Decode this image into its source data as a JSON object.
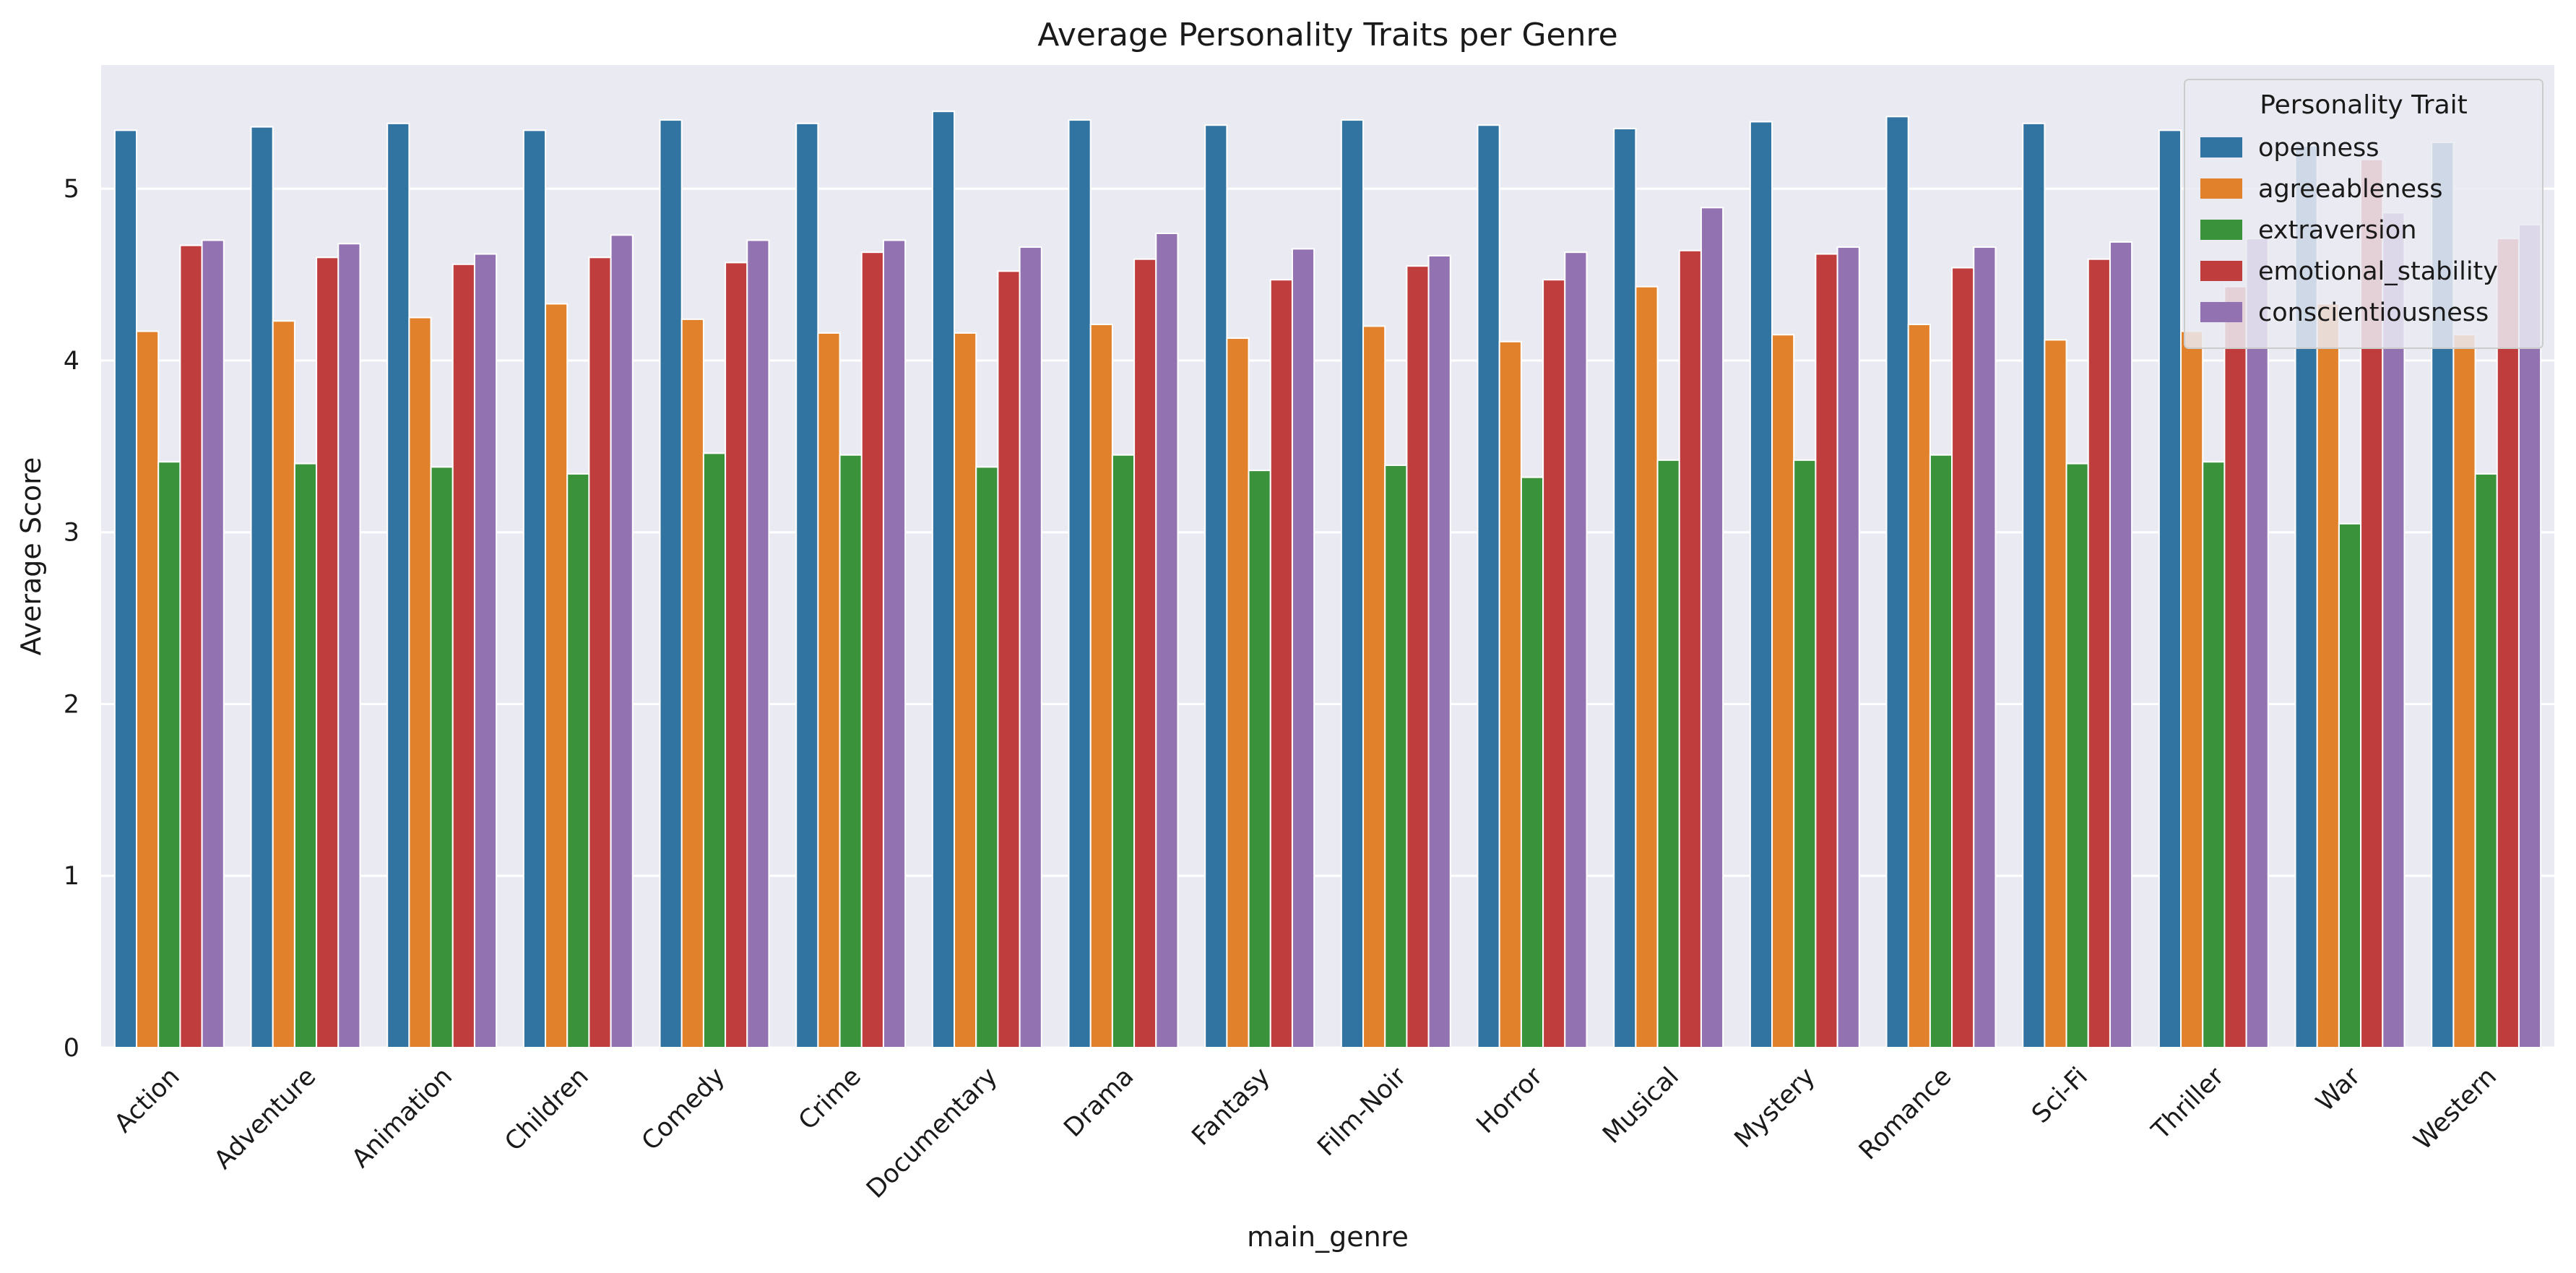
{
  "chart_data": {
    "type": "bar",
    "title": "Average Personality Traits per Genre",
    "xlabel": "main_genre",
    "ylabel": "Average Score",
    "ylim": [
      0,
      5.72
    ],
    "yticks": [
      "0",
      "1",
      "2",
      "3",
      "4",
      "5"
    ],
    "grid": true,
    "legend": {
      "title": "Personality Trait",
      "placement": "top-right"
    },
    "categories": [
      "Action",
      "Adventure",
      "Animation",
      "Children",
      "Comedy",
      "Crime",
      "Documentary",
      "Drama",
      "Fantasy",
      "Film-Noir",
      "Horror",
      "Musical",
      "Mystery",
      "Romance",
      "Sci-Fi",
      "Thriller",
      "War",
      "Western"
    ],
    "series": [
      {
        "name": "openness",
        "color": "#3274a1",
        "values": [
          5.34,
          5.36,
          5.38,
          5.34,
          5.4,
          5.38,
          5.45,
          5.4,
          5.37,
          5.4,
          5.37,
          5.35,
          5.39,
          5.42,
          5.38,
          5.34,
          5.25,
          5.27
        ]
      },
      {
        "name": "agreeableness",
        "color": "#e1812c",
        "values": [
          4.17,
          4.23,
          4.25,
          4.33,
          4.24,
          4.16,
          4.16,
          4.21,
          4.13,
          4.2,
          4.11,
          4.43,
          4.15,
          4.21,
          4.12,
          4.17,
          4.33,
          4.15
        ]
      },
      {
        "name": "extraversion",
        "color": "#3a923a",
        "values": [
          3.41,
          3.4,
          3.38,
          3.34,
          3.46,
          3.45,
          3.38,
          3.45,
          3.36,
          3.39,
          3.32,
          3.42,
          3.42,
          3.45,
          3.4,
          3.41,
          3.05,
          3.34
        ]
      },
      {
        "name": "emotional_stability",
        "color": "#c03d3e",
        "values": [
          4.67,
          4.6,
          4.56,
          4.6,
          4.57,
          4.63,
          4.52,
          4.59,
          4.47,
          4.55,
          4.47,
          4.64,
          4.62,
          4.54,
          4.59,
          4.43,
          5.17,
          4.71
        ]
      },
      {
        "name": "conscientiousness",
        "color": "#9372b2",
        "values": [
          4.7,
          4.68,
          4.62,
          4.73,
          4.7,
          4.7,
          4.66,
          4.74,
          4.65,
          4.61,
          4.63,
          4.89,
          4.66,
          4.66,
          4.69,
          4.71,
          4.86,
          4.79
        ]
      }
    ]
  }
}
